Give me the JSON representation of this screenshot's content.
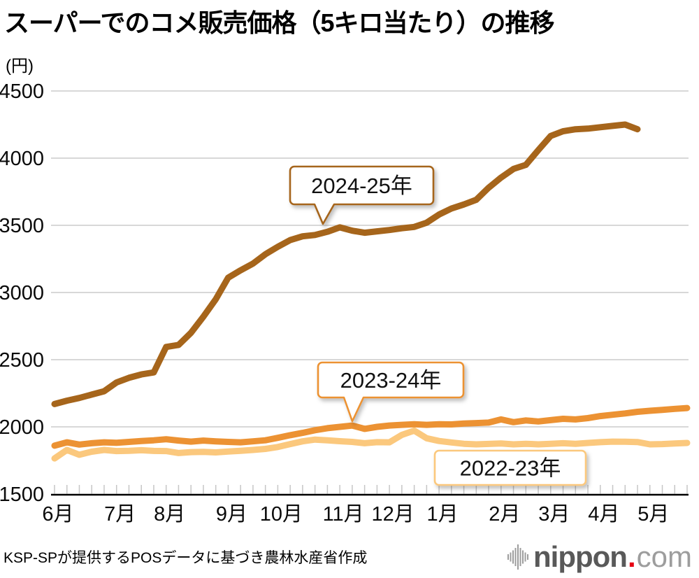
{
  "chart_data": {
    "type": "line",
    "title": "スーパーでのコメ販売価格（5キロ当たり）の推移",
    "y_unit_label": "(円)",
    "ylim": [
      1500,
      4500
    ],
    "y_ticks": [
      1500,
      2000,
      2500,
      3000,
      3500,
      4000,
      4500
    ],
    "grid": "horizontal-gray",
    "x_tick_unit": "week",
    "weeks_total": 52,
    "months": [
      "6月",
      "7月",
      "8月",
      "9月",
      "10月",
      "11月",
      "12月",
      "1月",
      "2月",
      "3月",
      "4月",
      "5月"
    ],
    "month_start_weeks": [
      0,
      5,
      9,
      14,
      18,
      23,
      27,
      31,
      36,
      40,
      44,
      48
    ],
    "legend_position": "inline-callouts-on-lines",
    "series": [
      {
        "name": "2024-25年",
        "color": "#A6651B",
        "start_week": 0,
        "values": [
          2170,
          2195,
          2215,
          2240,
          2265,
          2330,
          2365,
          2390,
          2405,
          2595,
          2610,
          2700,
          2820,
          2950,
          3110,
          3165,
          3215,
          3285,
          3340,
          3390,
          3418,
          3428,
          3452,
          3485,
          3460,
          3445,
          3455,
          3465,
          3478,
          3488,
          3520,
          3580,
          3625,
          3655,
          3690,
          3780,
          3855,
          3920,
          3950,
          4060,
          4165,
          4200,
          4215,
          4220,
          4230,
          4240,
          4250,
          4215
        ]
      },
      {
        "name": "2023-24年",
        "color": "#EC9233",
        "start_week": 0,
        "values": [
          1860,
          1885,
          1868,
          1878,
          1885,
          1882,
          1888,
          1895,
          1900,
          1908,
          1898,
          1890,
          1898,
          1892,
          1888,
          1885,
          1892,
          1900,
          1918,
          1938,
          1955,
          1975,
          1990,
          2000,
          2010,
          1985,
          2000,
          2010,
          2015,
          2020,
          2015,
          2020,
          2018,
          2025,
          2028,
          2032,
          2055,
          2035,
          2048,
          2040,
          2050,
          2060,
          2055,
          2065,
          2080,
          2090,
          2100,
          2112,
          2120,
          2126,
          2134,
          2140
        ]
      },
      {
        "name": "2022-23年",
        "color": "#FBC87D",
        "start_week": 0,
        "values": [
          1765,
          1828,
          1792,
          1815,
          1828,
          1820,
          1822,
          1826,
          1821,
          1820,
          1805,
          1812,
          1814,
          1810,
          1816,
          1822,
          1828,
          1836,
          1850,
          1872,
          1892,
          1905,
          1900,
          1893,
          1888,
          1878,
          1886,
          1885,
          1940,
          1972,
          1915,
          1895,
          1884,
          1874,
          1870,
          1873,
          1876,
          1870,
          1874,
          1870,
          1874,
          1878,
          1874,
          1880,
          1886,
          1890,
          1889,
          1887,
          1870,
          1872,
          1876,
          1880
        ]
      }
    ],
    "annotations": [
      "2024-25年",
      "2023-24年",
      "2022-23年"
    ]
  },
  "footer": {
    "source": "KSP-SPが提供するPOSデータに基づき農林水産省作成"
  },
  "logo": {
    "name": "nippon",
    "dot": ".",
    "tld": "com"
  }
}
